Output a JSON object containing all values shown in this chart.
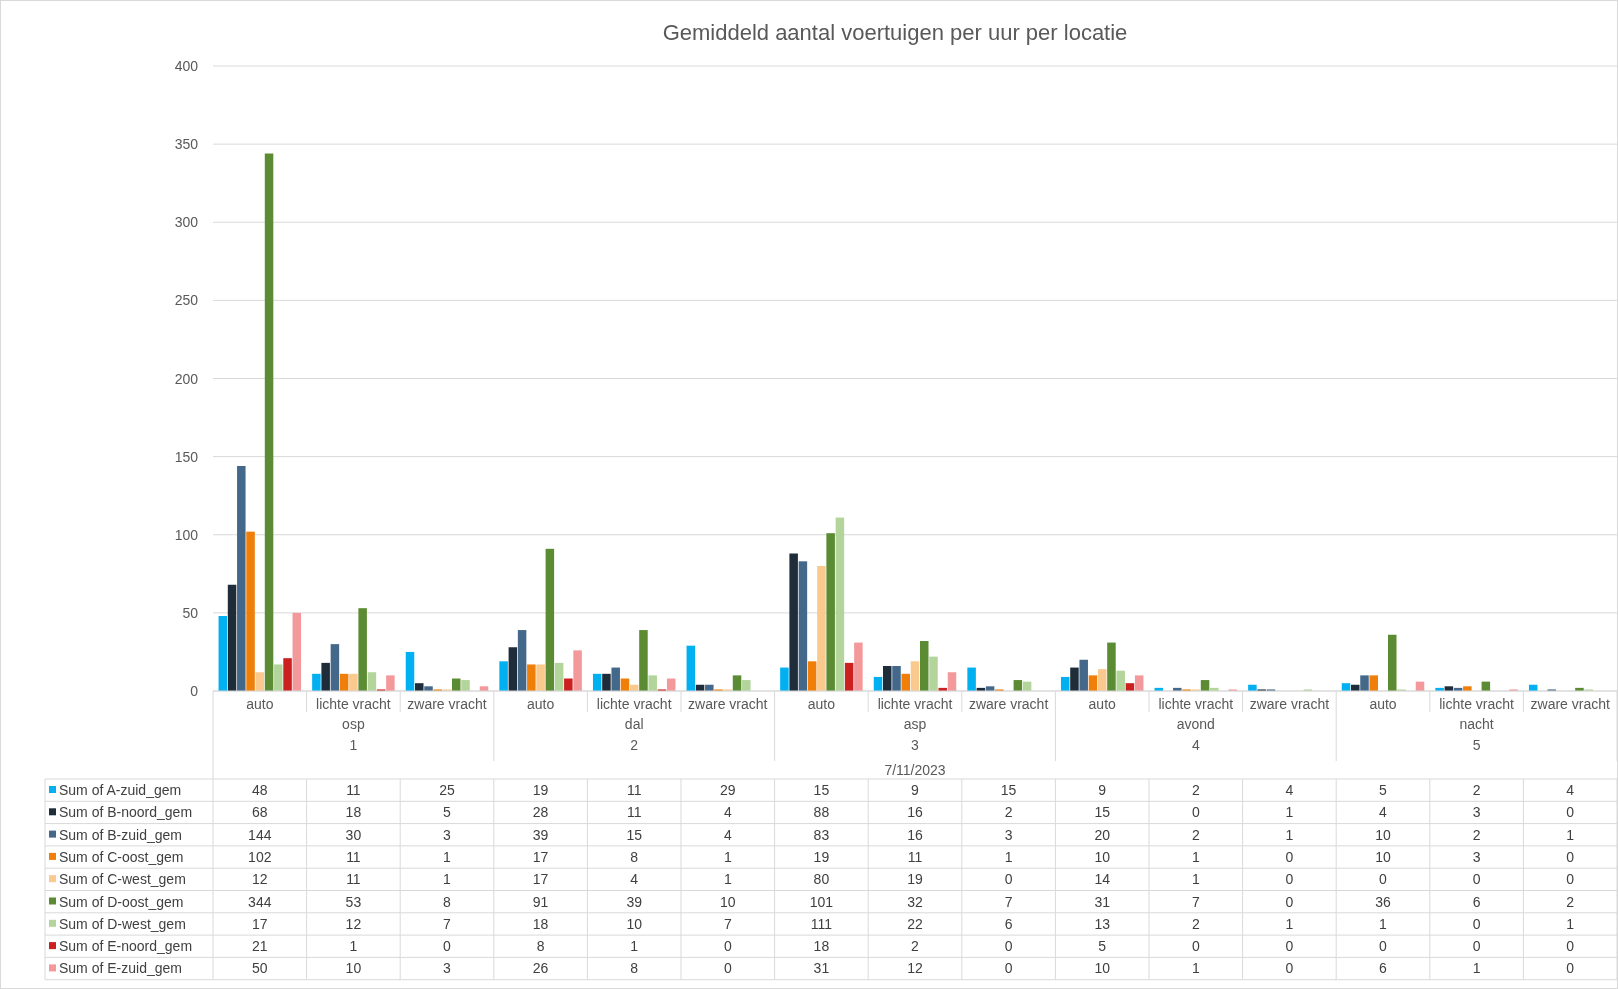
{
  "chart_data": {
    "type": "bar",
    "title": "Gemiddeld aantal voertuigen per uur per locatie",
    "categories": [
      "auto",
      "lichte vracht",
      "zware vracht",
      "auto",
      "lichte vracht",
      "zware vracht",
      "auto",
      "lichte vracht",
      "zware vracht",
      "auto",
      "lichte vracht",
      "zware vracht",
      "auto",
      "lichte vracht",
      "zware vracht"
    ],
    "annotations": [
      "osp",
      "1",
      "dal",
      "2",
      "asp",
      "3",
      "avond",
      "4",
      "nacht",
      "5",
      "7/11/2023"
    ],
    "series": [
      {
        "name": "Sum of A-zuid_gem",
        "color": "#00b0f0",
        "values": [
          48,
          11,
          25,
          19,
          11,
          29,
          15,
          9,
          15,
          9,
          2,
          4,
          5,
          2,
          4
        ]
      },
      {
        "name": "Sum of B-noord_gem",
        "color": "#1f2d3b",
        "values": [
          68,
          18,
          5,
          28,
          11,
          4,
          88,
          16,
          2,
          15,
          0,
          1,
          4,
          3,
          0
        ]
      },
      {
        "name": "Sum of B-zuid_gem",
        "color": "#44688a",
        "values": [
          144,
          30,
          3,
          39,
          15,
          4,
          83,
          16,
          3,
          20,
          2,
          1,
          10,
          2,
          1
        ]
      },
      {
        "name": "Sum of C-oost_gem",
        "color": "#f07f09",
        "values": [
          102,
          11,
          1,
          17,
          8,
          1,
          19,
          11,
          1,
          10,
          1,
          0,
          10,
          3,
          0
        ]
      },
      {
        "name": "Sum of C-west_gem",
        "color": "#f9c98e",
        "values": [
          12,
          11,
          1,
          17,
          4,
          1,
          80,
          19,
          0,
          14,
          1,
          0,
          0,
          0,
          0
        ]
      },
      {
        "name": "Sum of D-oost_gem",
        "color": "#5b8b32",
        "values": [
          344,
          53,
          8,
          91,
          39,
          10,
          101,
          32,
          7,
          31,
          7,
          0,
          36,
          6,
          2
        ]
      },
      {
        "name": "Sum of D-west_gem",
        "color": "#b3d59b",
        "values": [
          17,
          12,
          7,
          18,
          10,
          7,
          111,
          22,
          6,
          13,
          2,
          1,
          1,
          0,
          1
        ]
      },
      {
        "name": "Sum of E-noord_gem",
        "color": "#cc1f1f",
        "values": [
          21,
          1,
          0,
          8,
          1,
          0,
          18,
          2,
          0,
          5,
          0,
          0,
          0,
          0,
          0
        ]
      },
      {
        "name": "Sum of E-zuid_gem",
        "color": "#f4999b",
        "values": [
          50,
          10,
          3,
          26,
          8,
          0,
          31,
          12,
          0,
          10,
          1,
          0,
          6,
          1,
          0
        ]
      }
    ],
    "ylim": [
      0,
      400
    ],
    "yticks": [
      0,
      50,
      100,
      150,
      200,
      250,
      300,
      350,
      400
    ],
    "grid": "y",
    "legend": "bottom",
    "data_labels": true
  }
}
